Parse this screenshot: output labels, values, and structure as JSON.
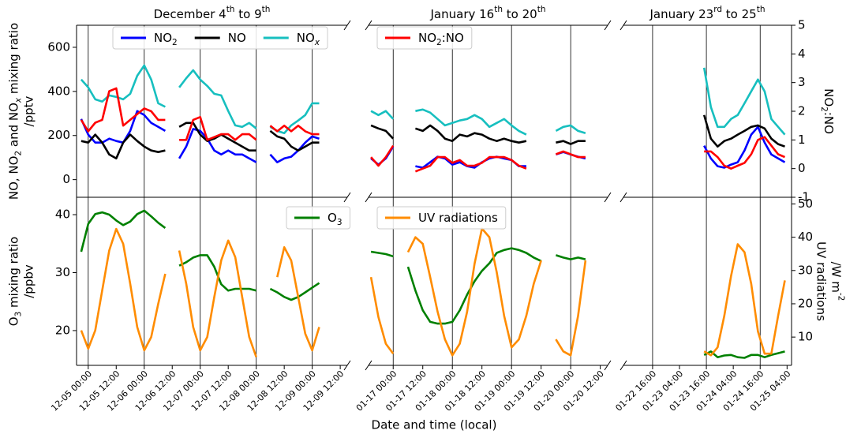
{
  "chart_data": {
    "type": "line",
    "xlabel": "Date and time (local)",
    "segments": [
      {
        "title": "December 4th to 9th",
        "xlim": [
          "12-04 19:00",
          "12-09 15:00"
        ],
        "xticks": [
          "12-05 00:00",
          "12-05 12:00",
          "12-06 00:00",
          "12-06 12:00",
          "12-07 00:00",
          "12-07 12:00",
          "12-08 00:00",
          "12-08 12:00",
          "12-09 00:00",
          "12-09 12:00"
        ],
        "vlines": [
          "12-05 00:00",
          "12-06 00:00",
          "12-07 00:00",
          "12-08 00:00",
          "12-09 00:00"
        ],
        "x": [
          "12-04 21:00",
          "12-05 00:00",
          "12-05 03:00",
          "12-05 06:00",
          "12-05 09:00",
          "12-05 12:00",
          "12-05 15:00",
          "12-05 18:00",
          "12-05 21:00",
          "12-06 00:00",
          "12-06 03:00",
          "12-06 06:00",
          "12-06 09:00",
          "12-06 12:00",
          "12-06 15:00",
          "12-06 18:00",
          "12-06 21:00",
          "12-07 00:00",
          "12-07 03:00",
          "12-07 06:00",
          "12-07 09:00",
          "12-07 12:00",
          "12-07 15:00",
          "12-07 18:00",
          "12-07 21:00",
          "12-08 00:00",
          "12-08 03:00",
          "12-08 06:00",
          "12-08 09:00",
          "12-08 12:00",
          "12-08 15:00",
          "12-08 18:00",
          "12-08 21:00",
          "12-09 00:00",
          "12-09 03:00"
        ]
      },
      {
        "title": "January 16th to 20th",
        "xlim": [
          "01-16 14:00",
          "01-20 15:00"
        ],
        "xticks": [
          "01-17 00:00",
          "01-17 12:00",
          "01-18 00:00",
          "01-18 12:00",
          "01-19 00:00",
          "01-19 12:00",
          "01-20 00:00",
          "01-20 12:00"
        ],
        "vlines": [
          "01-17 00:00",
          "01-18 00:00",
          "01-19 00:00",
          "01-20 00:00"
        ],
        "x": [
          "01-16 15:00",
          "01-16 18:00",
          "01-16 21:00",
          "01-17 00:00",
          "01-17 03:00",
          "01-17 06:00",
          "01-17 09:00",
          "01-17 12:00",
          "01-17 15:00",
          "01-17 18:00",
          "01-17 21:00",
          "01-18 00:00",
          "01-18 03:00",
          "01-18 06:00",
          "01-18 09:00",
          "01-18 12:00",
          "01-18 15:00",
          "01-18 18:00",
          "01-18 21:00",
          "01-19 00:00",
          "01-19 03:00",
          "01-19 06:00",
          "01-19 09:00",
          "01-19 12:00",
          "01-19 15:00",
          "01-19 18:00",
          "01-19 21:00",
          "01-20 00:00",
          "01-20 03:00",
          "01-20 06:00",
          "01-20 09:00"
        ]
      },
      {
        "title": "January 23rd to 25th",
        "xlim": [
          "01-22 03:00",
          "01-25 06:00"
        ],
        "xticks": [
          "01-22 16:00",
          "01-23 04:00",
          "01-23 16:00",
          "01-24 04:00",
          "01-24 16:00",
          "01-25 04:00"
        ],
        "vlines": [
          "01-22 16:00",
          "01-23 16:00",
          "01-24 16:00"
        ],
        "x": [
          "01-23 15:00",
          "01-23 18:00",
          "01-23 21:00",
          "01-24 00:00",
          "01-24 03:00",
          "01-24 06:00",
          "01-24 09:00",
          "01-24 12:00",
          "01-24 15:00",
          "01-24 18:00",
          "01-24 21:00",
          "01-25 00:00",
          "01-25 03:00"
        ]
      }
    ],
    "panels": [
      {
        "ylabel": [
          "NO, NO2 and NOx mixing ratio",
          "/pptv"
        ],
        "ycolor": "#00008b",
        "ylim": [
          -80,
          700
        ],
        "yticks": [
          0,
          200,
          400,
          600
        ],
        "y2label": [
          "NO2:NO"
        ],
        "y2color": "#ff0000",
        "y2lim": [
          -1,
          5
        ],
        "y2ticks": [
          -1,
          0,
          1,
          2,
          3,
          4,
          5
        ],
        "series": [
          {
            "name": "NO2",
            "color": "#0000ff",
            "values": [
              [
                275,
                204,
                168,
                168,
                186,
                175,
                168,
                221,
                311,
                293,
                257,
                239,
                221,
                null,
                96,
                150,
                230,
                221,
                186,
                132,
                114,
                132,
                114,
                114,
                96,
                79,
                null,
                114,
                79,
                96,
                104,
                132,
                168,
                196,
                186
              ],
              [
                96,
                68,
                96,
                150,
                null,
                null,
                61,
                54,
                79,
                104,
                96,
                68,
                79,
                61,
                54,
                79,
                96,
                104,
                96,
                89,
                61,
                61,
                null,
                null,
                null,
                114,
                125,
                114,
                104,
                96,
                null
              ],
              [
                154,
                96,
                61,
                54,
                68,
                79,
                132,
                204,
                239,
                168,
                114,
                96,
                79
              ]
            ]
          },
          {
            "name": "NO",
            "color": "#000000",
            "values": [
              [
                175,
                168,
                204,
                168,
                114,
                96,
                168,
                204,
                175,
                150,
                132,
                125,
                132,
                null,
                239,
                257,
                257,
                204,
                175,
                186,
                204,
                186,
                168,
                150,
                132,
                132,
                null,
                221,
                196,
                186,
                150,
                132,
                150,
                168,
                168
              ],
              [
                246,
                232,
                221,
                186,
                null,
                null,
                232,
                221,
                246,
                221,
                186,
                175,
                204,
                196,
                211,
                204,
                186,
                175,
                186,
                175,
                168,
                175,
                null,
                null,
                null,
                168,
                175,
                161,
                175,
                175,
                null
              ],
              [
                293,
                186,
                150,
                175,
                186,
                204,
                221,
                239,
                246,
                232,
                186,
                161,
                150
              ]
            ]
          },
          {
            "name": "NOx",
            "color": "#17bfbf",
            "values": [
              [
                454,
                418,
                364,
                354,
                382,
                375,
                364,
                389,
                471,
                518,
                454,
                346,
                330,
                null,
                418,
                460,
                496,
                454,
                425,
                389,
                382,
                311,
                246,
                239,
                257,
                232,
                null,
                239,
                221,
                211,
                246,
                268,
                293,
                346,
                346
              ],
              [
                311,
                293,
                311,
                275,
                null,
                null,
                311,
                318,
                304,
                275,
                246,
                257,
                268,
                275,
                293,
                275,
                239,
                257,
                275,
                246,
                221,
                204,
                null,
                null,
                null,
                221,
                239,
                246,
                221,
                211,
                null
              ],
              [
                507,
                329,
                239,
                239,
                275,
                293,
                346,
                400,
                454,
                400,
                275,
                239,
                204
              ]
            ]
          },
          {
            "name": "NO2:NO",
            "color": "#ff0000",
            "axis": "y2",
            "values": [
              [
                1.7,
                1.3,
                1.6,
                1.7,
                2.7,
                2.8,
                1.5,
                1.7,
                1.9,
                2.1,
                2.0,
                1.7,
                1.7,
                null,
                1.0,
                1.0,
                1.7,
                1.8,
                1.0,
                1.1,
                1.2,
                1.2,
                1.0,
                1.2,
                1.2,
                1.0,
                null,
                1.5,
                1.3,
                1.5,
                1.3,
                1.5,
                1.3,
                1.2,
                1.2
              ],
              [
                0.4,
                0.1,
                0.4,
                0.8,
                null,
                null,
                -0.1,
                0.0,
                0.1,
                0.4,
                0.4,
                0.2,
                0.3,
                0.1,
                0.1,
                0.2,
                0.4,
                0.4,
                0.4,
                0.3,
                0.1,
                0.0,
                null,
                null,
                null,
                0.5,
                0.6,
                0.5,
                0.4,
                0.4,
                null
              ],
              [
                0.6,
                0.6,
                0.4,
                0.1,
                0.0,
                0.1,
                0.2,
                0.5,
                1.0,
                1.1,
                0.8,
                0.5,
                0.4
              ]
            ]
          }
        ]
      },
      {
        "ylabel": [
          "O3 mixing ratio",
          "/ppbv"
        ],
        "ycolor": "#008000",
        "ylim": [
          14,
          43
        ],
        "yticks": [
          20,
          30,
          40
        ],
        "y2label": [
          "UV radiations",
          "/W m-2"
        ],
        "y2color": "#ff8c00",
        "y2lim": [
          1.5,
          52
        ],
        "y2ticks": [
          10,
          20,
          30,
          40,
          50
        ],
        "series": [
          {
            "name": "O3",
            "color": "#008000",
            "values": [
              [
                33.6,
                38.4,
                40.1,
                40.4,
                40.0,
                39.0,
                38.2,
                38.8,
                40.1,
                40.7,
                39.7,
                38.6,
                37.7,
                null,
                31.2,
                31.8,
                32.6,
                33.0,
                33.0,
                31.0,
                28.0,
                26.9,
                27.2,
                27.2,
                27.2,
                26.9,
                null,
                27.2,
                26.6,
                25.8,
                25.3,
                25.8,
                26.6,
                27.4,
                28.2
              ],
              [
                33.6,
                33.4,
                33.2,
                32.8,
                null,
                31,
                26.9,
                23.5,
                21.5,
                21.2,
                21.2,
                21.5,
                23.5,
                26.2,
                28.5,
                30.3,
                31.6,
                33.4,
                33.9,
                34.2,
                33.9,
                33.4,
                32.6,
                32.0,
                null,
                33.0,
                32.6,
                32.3,
                32.6,
                32.3,
                null
              ],
              [
                15.8,
                16.4,
                15.4,
                15.7,
                15.8,
                15.4,
                15.3,
                15.8,
                15.8,
                15.4,
                15.8,
                16.1,
                16.4
              ]
            ]
          },
          {
            "name": "UV radiations",
            "color": "#ff8c00",
            "axis": "y2",
            "values": [
              [
                12,
                6.5,
                12,
                24,
                36,
                42.5,
                38,
                26,
                13,
                6,
                10,
                20,
                29,
                null,
                36,
                26,
                13,
                6,
                10,
                22,
                33,
                39,
                34,
                22,
                10,
                4,
                null,
                null,
                28,
                37,
                33,
                22,
                11,
                6,
                13
              ],
              [
                28,
                16,
                8,
                5,
                null,
                35.5,
                40,
                38,
                28,
                17.6,
                9.3,
                4.5,
                8,
                17.6,
                32,
                42.6,
                40,
                29.5,
                16.4,
                6.9,
                9.3,
                16.4,
                26,
                33,
                null,
                9.3,
                5.7,
                4.5,
                16.4,
                33,
                null
              ],
              [
                5.7,
                4.5,
                6.9,
                16.4,
                28.3,
                37.9,
                35.5,
                26,
                11.7,
                5,
                5,
                16.4,
                27
              ]
            ]
          }
        ]
      }
    ]
  }
}
